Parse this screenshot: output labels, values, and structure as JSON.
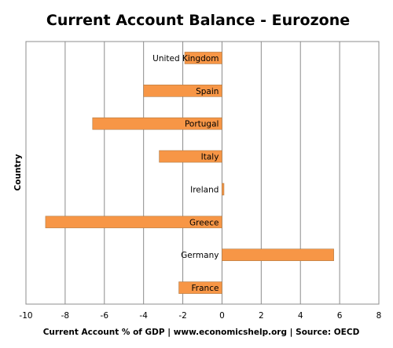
{
  "colors": {
    "bar": "#f79646",
    "grid": "#8c8c8c",
    "text": "#000000",
    "background": "#ffffff"
  },
  "chart_data": {
    "type": "bar",
    "orientation": "horizontal",
    "title": "Current Account Balance - Eurozone",
    "xlabel": "Current Account % of GDP | www.economicshelp.org | Source: OECD",
    "ylabel": "Country",
    "xlim": [
      -10,
      8
    ],
    "xticks": [
      -10,
      -8,
      -6,
      -4,
      -2,
      0,
      2,
      4,
      6,
      8
    ],
    "grid": true,
    "legend": "none",
    "categories": [
      "United Kingdom",
      "Spain",
      "Portugal",
      "Italy",
      "Ireland",
      "Greece",
      "Germany",
      "France"
    ],
    "values": [
      -1.9,
      -4.0,
      -6.6,
      -3.2,
      0.1,
      -9.0,
      5.7,
      -2.2
    ]
  }
}
